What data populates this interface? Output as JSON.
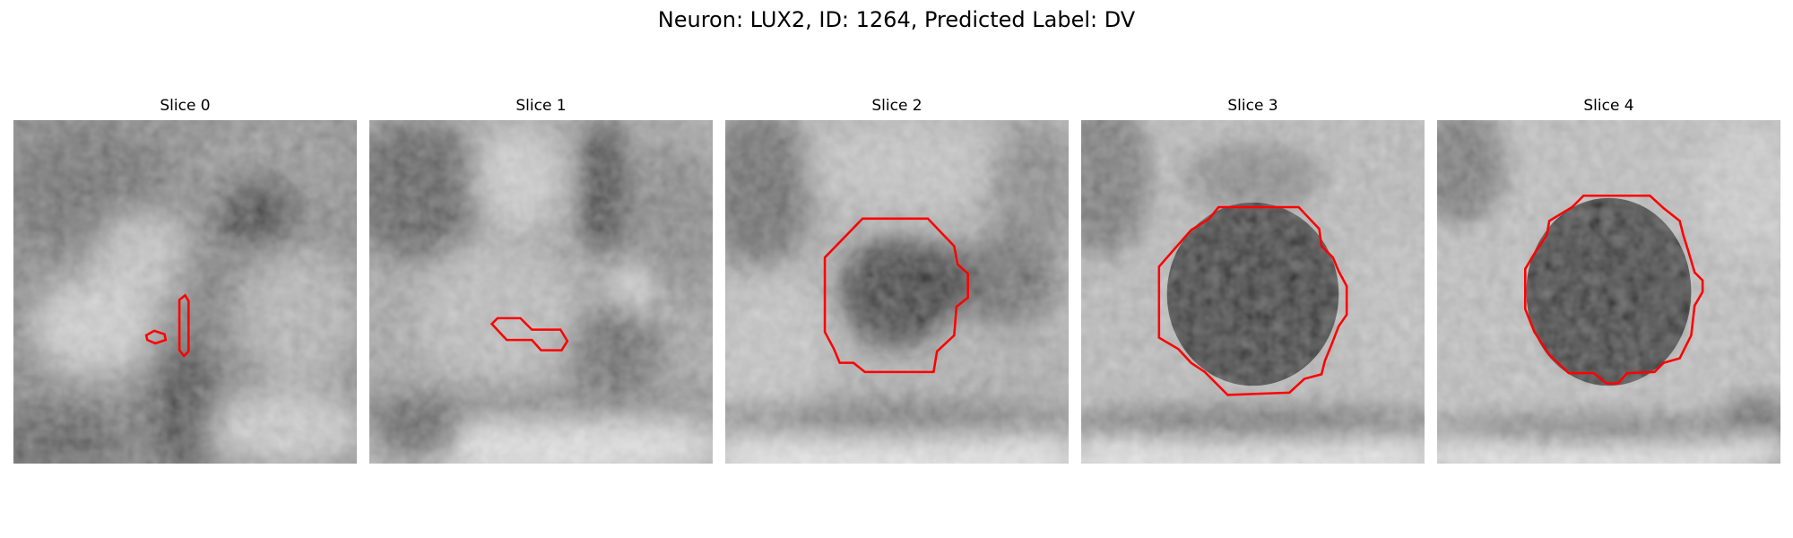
{
  "figure": {
    "title": "Neuron: LUX2, ID: 1264, Predicted Label: DV"
  },
  "panels": [
    {
      "title": "Slice 0",
      "image": "grayscale-microscopy-patch-neurites",
      "overlay": "red-contour-small-fragments"
    },
    {
      "title": "Slice 1",
      "image": "grayscale-microscopy-patch-neurites",
      "overlay": "red-contour-small-diagonal"
    },
    {
      "title": "Slice 2",
      "image": "grayscale-microscopy-patch-dark-soma",
      "overlay": "red-contour-octagon"
    },
    {
      "title": "Slice 3",
      "image": "grayscale-microscopy-patch-dark-soma",
      "overlay": "red-contour-octagon"
    },
    {
      "title": "Slice 4",
      "image": "grayscale-microscopy-patch-dark-soma",
      "overlay": "red-contour-octagon"
    }
  ],
  "colors": {
    "contour": "#ff0000",
    "background": "#ffffff"
  }
}
